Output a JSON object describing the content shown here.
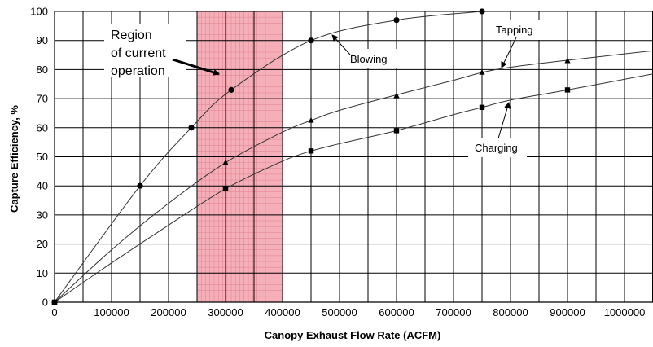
{
  "chart_data": {
    "type": "line",
    "title": "",
    "xlabel": "Canopy Exhaust Flow Rate (ACFM)",
    "ylabel": "Capture Efficiency, %",
    "xlim": [
      0,
      1050000
    ],
    "ylim": [
      0,
      100
    ],
    "xticks": [
      0,
      100000,
      200000,
      300000,
      400000,
      500000,
      600000,
      700000,
      800000,
      900000,
      1000000
    ],
    "yticks": [
      0,
      10,
      20,
      30,
      40,
      50,
      60,
      70,
      80,
      90,
      100
    ],
    "grid": true,
    "highlight_region": {
      "label": "Region of current operation",
      "x_range": [
        250000,
        400000
      ],
      "color": "#f4a6b0"
    },
    "series": [
      {
        "name": "Blowing",
        "marker": "circle",
        "x": [
          0,
          150000,
          240000,
          310000,
          450000,
          600000,
          750000
        ],
        "y": [
          0,
          40,
          60,
          73,
          90,
          97,
          100
        ]
      },
      {
        "name": "Tapping",
        "marker": "triangle",
        "x": [
          0,
          300000,
          450000,
          600000,
          750000,
          900000
        ],
        "y": [
          0,
          48,
          62.5,
          71,
          79,
          83
        ],
        "curve_x": [
          0,
          100000,
          200000,
          300000,
          400000,
          450000,
          500000,
          600000,
          700000,
          750000,
          800000,
          900000,
          1050000
        ],
        "curve_y": [
          0,
          18,
          34,
          48,
          58.5,
          62.5,
          66,
          71.3,
          76.3,
          79,
          80.8,
          83.2,
          86.5
        ]
      },
      {
        "name": "Charging",
        "marker": "square",
        "x": [
          0,
          300000,
          450000,
          600000,
          750000,
          900000
        ],
        "y": [
          0,
          39,
          52,
          59,
          67,
          73
        ],
        "curve_x": [
          0,
          100000,
          200000,
          300000,
          400000,
          450000,
          500000,
          600000,
          700000,
          750000,
          800000,
          900000,
          1050000
        ],
        "curve_y": [
          0,
          13.5,
          26.5,
          39,
          48.5,
          52,
          54.5,
          59,
          64.5,
          67,
          69.5,
          73,
          78.5
        ]
      }
    ],
    "annotations": {
      "region": [
        "Region",
        "of current",
        "operation"
      ],
      "blowing": "Blowing",
      "tapping": "Tapping",
      "charging": "Charging"
    }
  }
}
